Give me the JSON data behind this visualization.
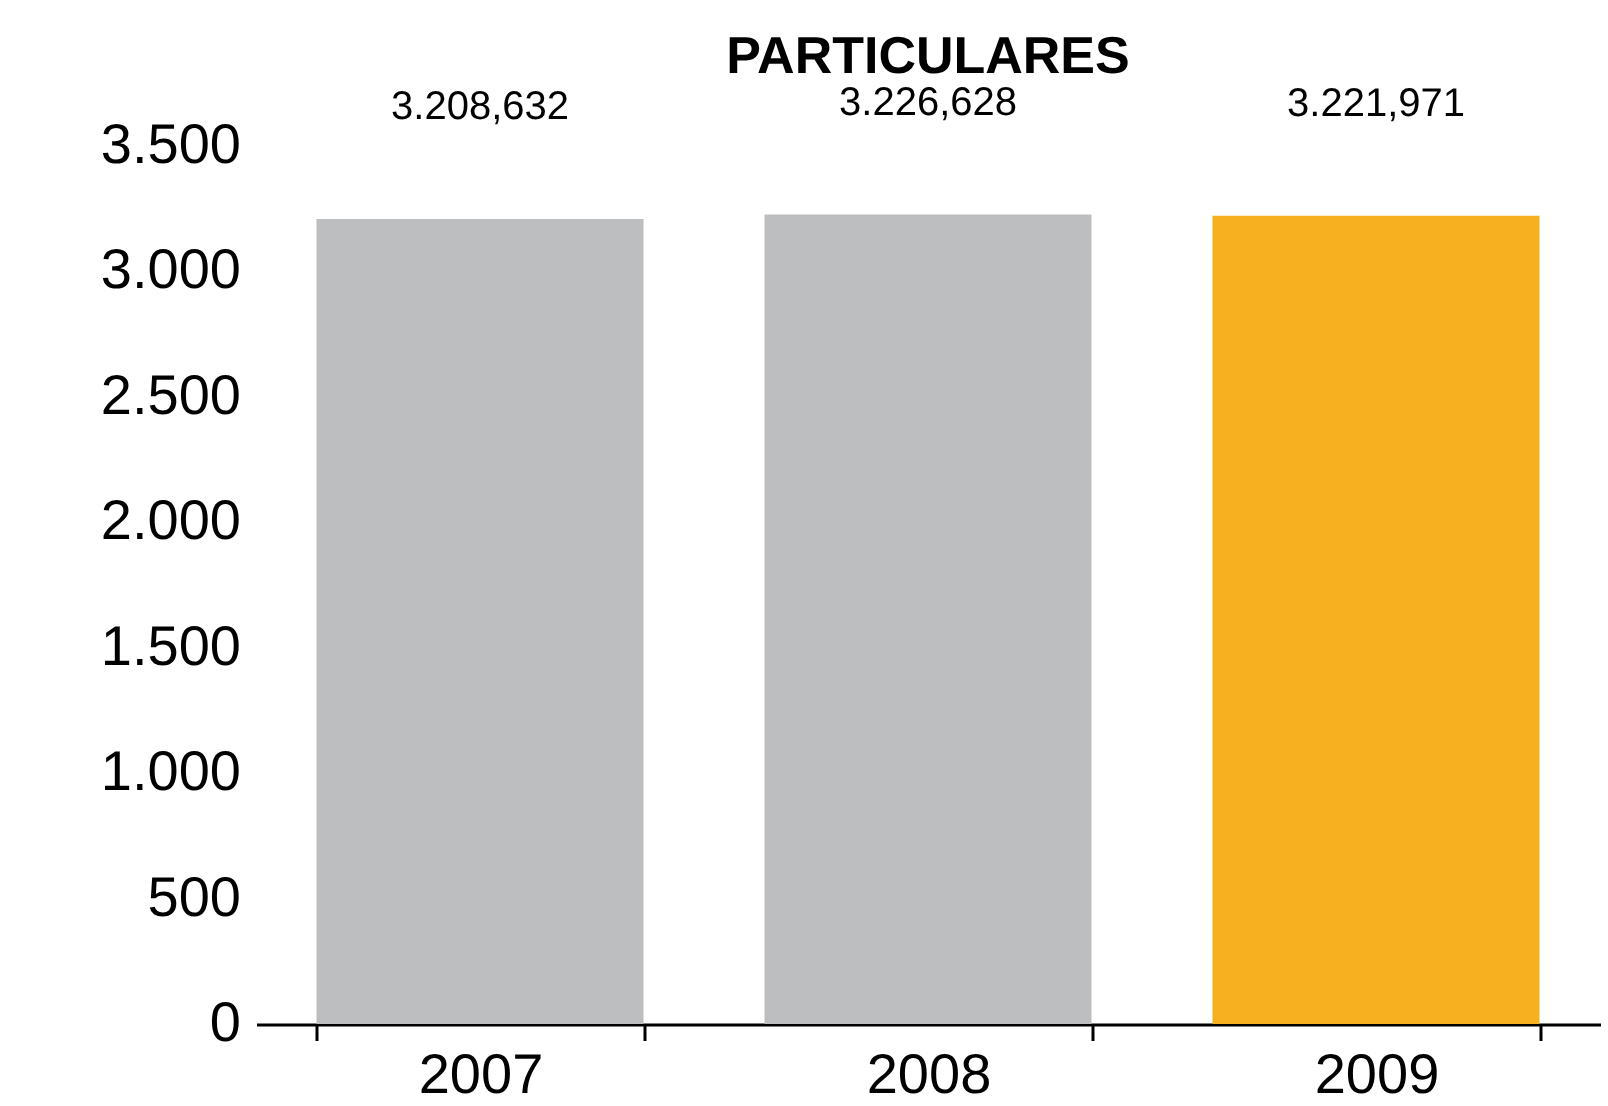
{
  "chart_data": {
    "type": "bar",
    "title": "PARTICULARES",
    "categories": [
      "2007",
      "2008",
      "2009"
    ],
    "values": [
      3208.632,
      3226.628,
      3221.971
    ],
    "colors": [
      "#bdbebf",
      "#bdbebf",
      "#f7b120"
    ],
    "value_labels": [
      "3.208,632",
      "3.226,628",
      "3.221,971"
    ],
    "ylim": [
      0,
      3500
    ],
    "yticks": [
      {
        "value": 0,
        "label": "0"
      },
      {
        "value": 500,
        "label": "500"
      },
      {
        "value": 1000,
        "label": "1.000"
      },
      {
        "value": 1500,
        "label": "1.500"
      },
      {
        "value": 2000,
        "label": "2.000"
      },
      {
        "value": 2500,
        "label": "2.500"
      },
      {
        "value": 3000,
        "label": "3.000"
      },
      {
        "value": 3500,
        "label": "3.500"
      }
    ],
    "grid": false
  }
}
